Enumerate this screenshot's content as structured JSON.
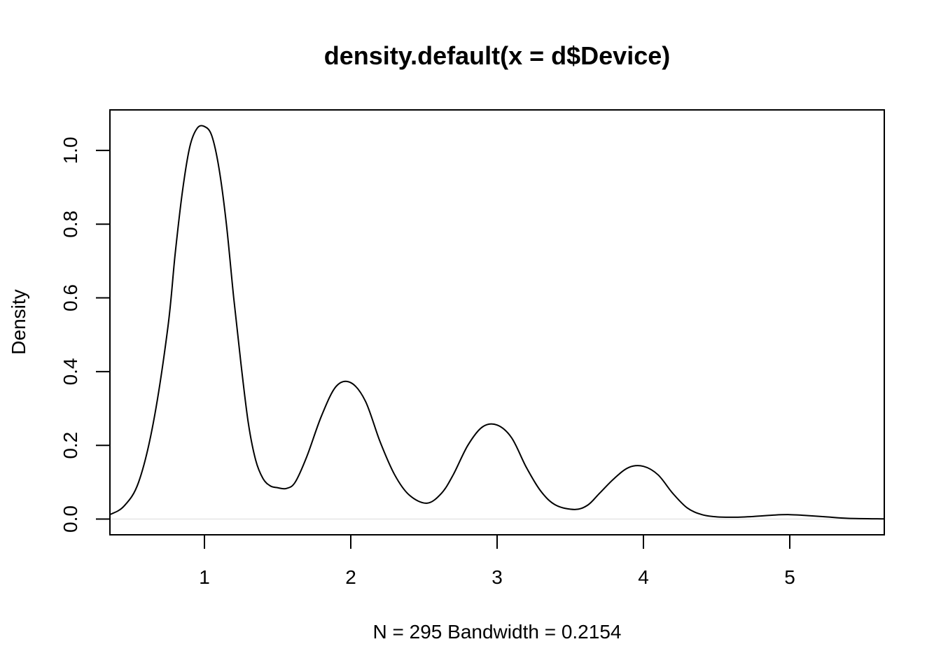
{
  "chart_data": {
    "type": "line",
    "title": "density.default(x = d$Device)",
    "xlabel": "N = 295   Bandwidth = 0.2154",
    "ylabel": "Density",
    "xlim": [
      0.354,
      5.646
    ],
    "ylim": [
      -0.0427,
      1.11
    ],
    "x_ticks": [
      1,
      2,
      3,
      4,
      5
    ],
    "x_tick_labels": [
      "1",
      "2",
      "3",
      "4",
      "5"
    ],
    "y_ticks": [
      0.0,
      0.2,
      0.4,
      0.6,
      0.8,
      1.0
    ],
    "y_tick_labels": [
      "0.0",
      "0.2",
      "0.4",
      "0.6",
      "0.8",
      "1.0"
    ],
    "baseline": 0,
    "line_color": "#000000",
    "baseline_color": "#e6e6e6",
    "series": [
      {
        "x": [
          0.354,
          0.45,
          0.55,
          0.65,
          0.75,
          0.8,
          0.85,
          0.9,
          0.95,
          1.0,
          1.05,
          1.1,
          1.15,
          1.2,
          1.25,
          1.3,
          1.35,
          1.4,
          1.45,
          1.5,
          1.56,
          1.62,
          1.7,
          1.8,
          1.9,
          2.0,
          2.1,
          2.2,
          2.3,
          2.4,
          2.52,
          2.62,
          2.7,
          2.8,
          2.9,
          3.0,
          3.1,
          3.2,
          3.3,
          3.4,
          3.53,
          3.62,
          3.7,
          3.8,
          3.9,
          4.0,
          4.1,
          4.2,
          4.3,
          4.4,
          4.5,
          4.62,
          4.75,
          4.9,
          5.0,
          5.1,
          5.25,
          5.4,
          5.646
        ],
        "y": [
          0.012,
          0.035,
          0.1,
          0.26,
          0.52,
          0.72,
          0.89,
          1.01,
          1.06,
          1.065,
          1.04,
          0.95,
          0.8,
          0.6,
          0.42,
          0.26,
          0.16,
          0.11,
          0.09,
          0.085,
          0.083,
          0.1,
          0.17,
          0.28,
          0.36,
          0.37,
          0.32,
          0.21,
          0.12,
          0.065,
          0.043,
          0.07,
          0.12,
          0.2,
          0.25,
          0.255,
          0.22,
          0.14,
          0.075,
          0.038,
          0.026,
          0.038,
          0.07,
          0.11,
          0.14,
          0.143,
          0.12,
          0.07,
          0.03,
          0.012,
          0.006,
          0.005,
          0.007,
          0.011,
          0.012,
          0.01,
          0.006,
          0.002,
          0.0005
        ]
      }
    ]
  }
}
